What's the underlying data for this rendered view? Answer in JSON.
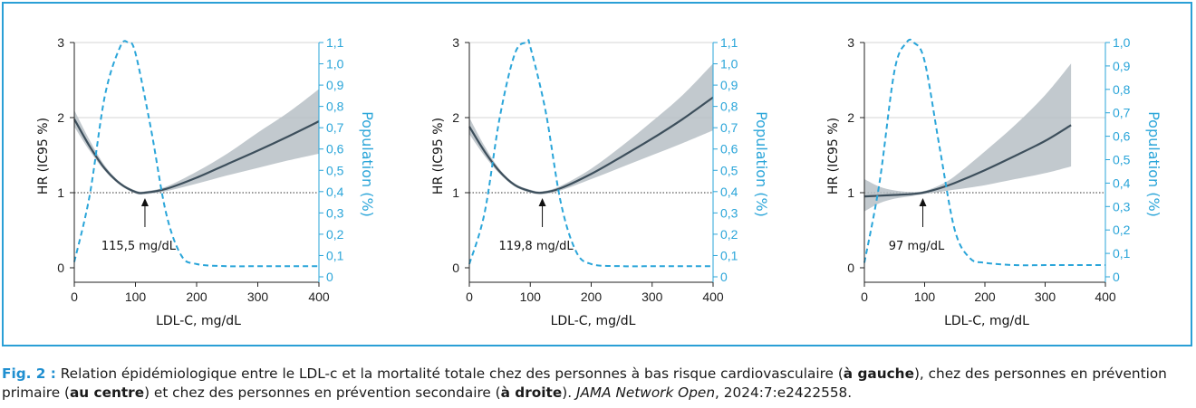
{
  "chart_data": [
    {
      "type": "line",
      "panel": "left",
      "ylabel": "HR (IC95 %)",
      "y2label": "Population (%)",
      "xlabel": "LDL-C, mg/dL",
      "x_ticks": [
        "0",
        "100",
        "200",
        "300",
        "400"
      ],
      "y_ticks": [
        "0",
        "1",
        "2",
        "3"
      ],
      "y2_ticks": [
        "0",
        "0,1",
        "0,2",
        "0,3",
        "0,4",
        "0,5",
        "0,6",
        "0,7",
        "0,8",
        "0,9",
        "1,0",
        "1,1"
      ],
      "xlim": [
        0,
        400
      ],
      "ylim": [
        0,
        3
      ],
      "y2lim": [
        0,
        1.1
      ],
      "reference_line_hr": 1,
      "nadir": {
        "x": 115.5,
        "label": "115,5 mg/dL"
      },
      "hr_curve": {
        "x": [
          0,
          25,
          50,
          75,
          100,
          115.5,
          150,
          200,
          250,
          300,
          350,
          400
        ],
        "y": [
          1.98,
          1.62,
          1.32,
          1.12,
          1.01,
          1.0,
          1.05,
          1.2,
          1.38,
          1.56,
          1.75,
          1.95
        ],
        "lower": [
          1.88,
          1.56,
          1.29,
          1.1,
          0.99,
          0.98,
          1.02,
          1.12,
          1.23,
          1.33,
          1.43,
          1.52
        ],
        "upper": [
          2.1,
          1.7,
          1.36,
          1.14,
          1.03,
          1.02,
          1.08,
          1.28,
          1.52,
          1.8,
          2.07,
          2.38
        ]
      },
      "population_curve": {
        "x": [
          0,
          25,
          50,
          75,
          88,
          100,
          125,
          150,
          175,
          200,
          250,
          300,
          350,
          400
        ],
        "y": [
          0.07,
          0.38,
          0.85,
          1.08,
          1.1,
          1.05,
          0.7,
          0.3,
          0.1,
          0.06,
          0.05,
          0.05,
          0.05,
          0.05
        ]
      }
    },
    {
      "type": "line",
      "panel": "center",
      "ylabel": "HR (IC95 %)",
      "y2label": "Population (%)",
      "xlabel": "LDL-C, mg/dL",
      "x_ticks": [
        "0",
        "100",
        "200",
        "300",
        "400"
      ],
      "y_ticks": [
        "0",
        "1",
        "2",
        "3"
      ],
      "y2_ticks": [
        "0",
        "0,1",
        "0,2",
        "0,3",
        "0,4",
        "0,5",
        "0,6",
        "0,7",
        "0,8",
        "0,9",
        "1,0",
        "1,1"
      ],
      "xlim": [
        0,
        400
      ],
      "ylim": [
        0,
        3
      ],
      "y2lim": [
        0,
        1.1
      ],
      "reference_line_hr": 1,
      "nadir": {
        "x": 119.8,
        "label": "119,8 mg/dL"
      },
      "hr_curve": {
        "x": [
          0,
          25,
          50,
          75,
          100,
          119.8,
          150,
          200,
          250,
          300,
          350,
          400
        ],
        "y": [
          1.88,
          1.55,
          1.28,
          1.1,
          1.02,
          1.0,
          1.06,
          1.25,
          1.48,
          1.72,
          1.98,
          2.27
        ],
        "lower": [
          1.78,
          1.49,
          1.25,
          1.08,
          1.0,
          0.98,
          1.03,
          1.18,
          1.34,
          1.5,
          1.66,
          1.83
        ],
        "upper": [
          2.0,
          1.62,
          1.31,
          1.12,
          1.04,
          1.02,
          1.09,
          1.32,
          1.62,
          1.95,
          2.3,
          2.72
        ]
      },
      "population_curve": {
        "x": [
          0,
          25,
          50,
          75,
          95,
          100,
          125,
          150,
          175,
          200,
          250,
          300,
          350,
          400
        ],
        "y": [
          0.06,
          0.3,
          0.75,
          1.05,
          1.1,
          1.08,
          0.78,
          0.35,
          0.12,
          0.06,
          0.05,
          0.05,
          0.05,
          0.05
        ]
      }
    },
    {
      "type": "line",
      "panel": "right",
      "ylabel": "HR (IC95 %)",
      "y2label": "Population (%)",
      "xlabel": "LDL-C, mg/dL",
      "x_ticks": [
        "0",
        "100",
        "200",
        "300",
        "400"
      ],
      "y_ticks": [
        "0",
        "1",
        "2",
        "3"
      ],
      "y2_ticks": [
        "0",
        "0,1",
        "0,2",
        "0,3",
        "0,4",
        "0,5",
        "0,6",
        "0,7",
        "0,8",
        "0,9",
        "1,0"
      ],
      "xlim": [
        0,
        400
      ],
      "ylim": [
        0,
        3
      ],
      "y2lim": [
        0,
        1.0
      ],
      "reference_line_hr": 1,
      "nadir": {
        "x": 97,
        "label": "97 mg/dL"
      },
      "hr_curve": {
        "x": [
          0,
          25,
          50,
          75,
          97,
          125,
          150,
          200,
          250,
          300,
          343
        ],
        "y": [
          0.95,
          0.96,
          0.97,
          0.98,
          1.0,
          1.06,
          1.13,
          1.3,
          1.49,
          1.69,
          1.9
        ],
        "lower": [
          0.75,
          0.86,
          0.92,
          0.95,
          0.98,
          1.01,
          1.04,
          1.1,
          1.18,
          1.26,
          1.35
        ],
        "upper": [
          1.18,
          1.08,
          1.03,
          1.01,
          1.02,
          1.1,
          1.22,
          1.55,
          1.9,
          2.3,
          2.72
        ]
      },
      "population_curve": {
        "x": [
          0,
          25,
          50,
          70,
          82,
          100,
          125,
          150,
          175,
          200,
          250,
          300,
          350,
          400
        ],
        "y": [
          0.06,
          0.4,
          0.88,
          1.0,
          1.0,
          0.92,
          0.55,
          0.2,
          0.08,
          0.06,
          0.05,
          0.05,
          0.05,
          0.05
        ]
      }
    }
  ],
  "caption": {
    "fig_label": "Fig. 2 :",
    "part1": " Relation épidémiologique entre le LDL-c et la mortalité totale chez des personnes à bas risque cardiovasculaire (",
    "bold1": "à gauche",
    "part2": "), chez des personnes en prévention",
    "part3": "primaire (",
    "bold2": "au centre",
    "part4": ") et chez des personnes en prévention secondaire (",
    "bold3": "à droite",
    "part5": "). ",
    "journal": "JAMA Network Open",
    "part6": ", 2024:7:e2422558."
  },
  "colors": {
    "hr_line": "#3d4f5c",
    "ci_band": "#b7c0c6",
    "population": "#2aa5d9",
    "frame": "#2a9fd6",
    "fig_label": "#1f8fd0"
  }
}
